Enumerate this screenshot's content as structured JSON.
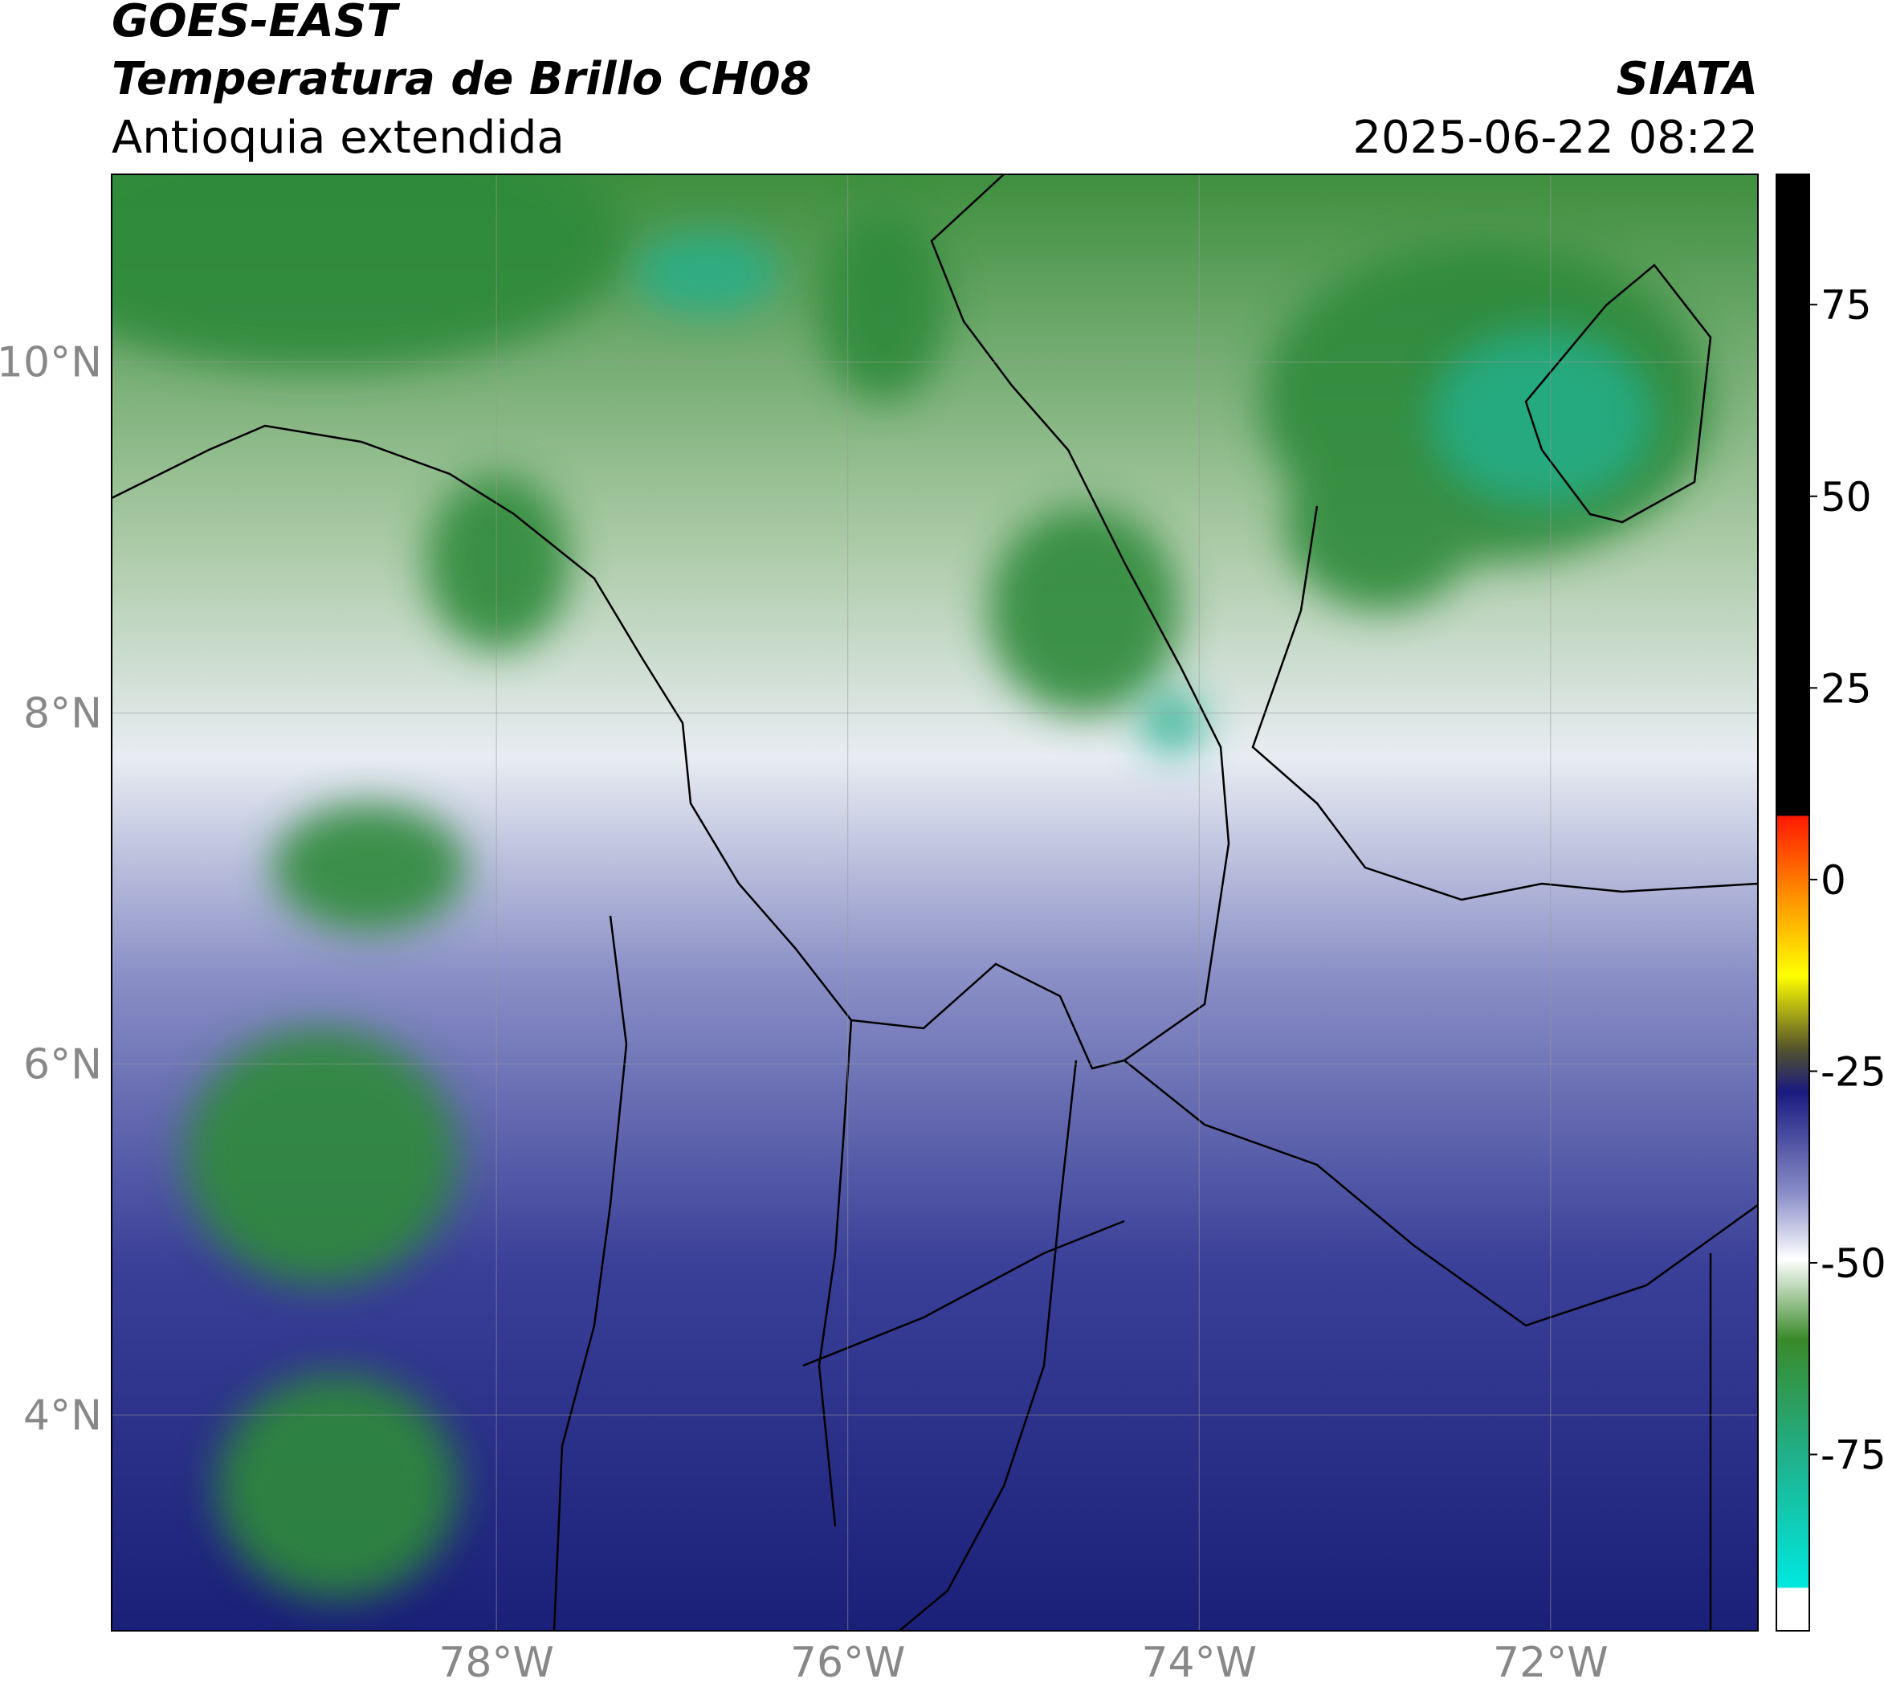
{
  "header": {
    "title": "GOES-EAST",
    "subtitle": "Temperatura de Brillo CH08",
    "region": "Antioquia extendida",
    "brand": "SIATA",
    "datetime": "2025-06-22 08:22"
  },
  "map": {
    "xlim": [
      -80.19,
      -70.82
    ],
    "ylim": [
      2.77,
      11.07
    ],
    "xticks": [
      {
        "value": -78,
        "label": "78°W"
      },
      {
        "value": -76,
        "label": "76°W"
      },
      {
        "value": -74,
        "label": "74°W"
      },
      {
        "value": -72,
        "label": "72°W"
      }
    ],
    "yticks": [
      {
        "value": 4,
        "label": "4°N"
      },
      {
        "value": 6,
        "label": "6°N"
      },
      {
        "value": 8,
        "label": "8°N"
      },
      {
        "value": 10,
        "label": "10°N"
      }
    ],
    "grid": true
  },
  "colorbar": {
    "ylim": [
      -98,
      92
    ],
    "yticks": [
      -75,
      -50,
      -25,
      0,
      25,
      50,
      75
    ]
  }
}
